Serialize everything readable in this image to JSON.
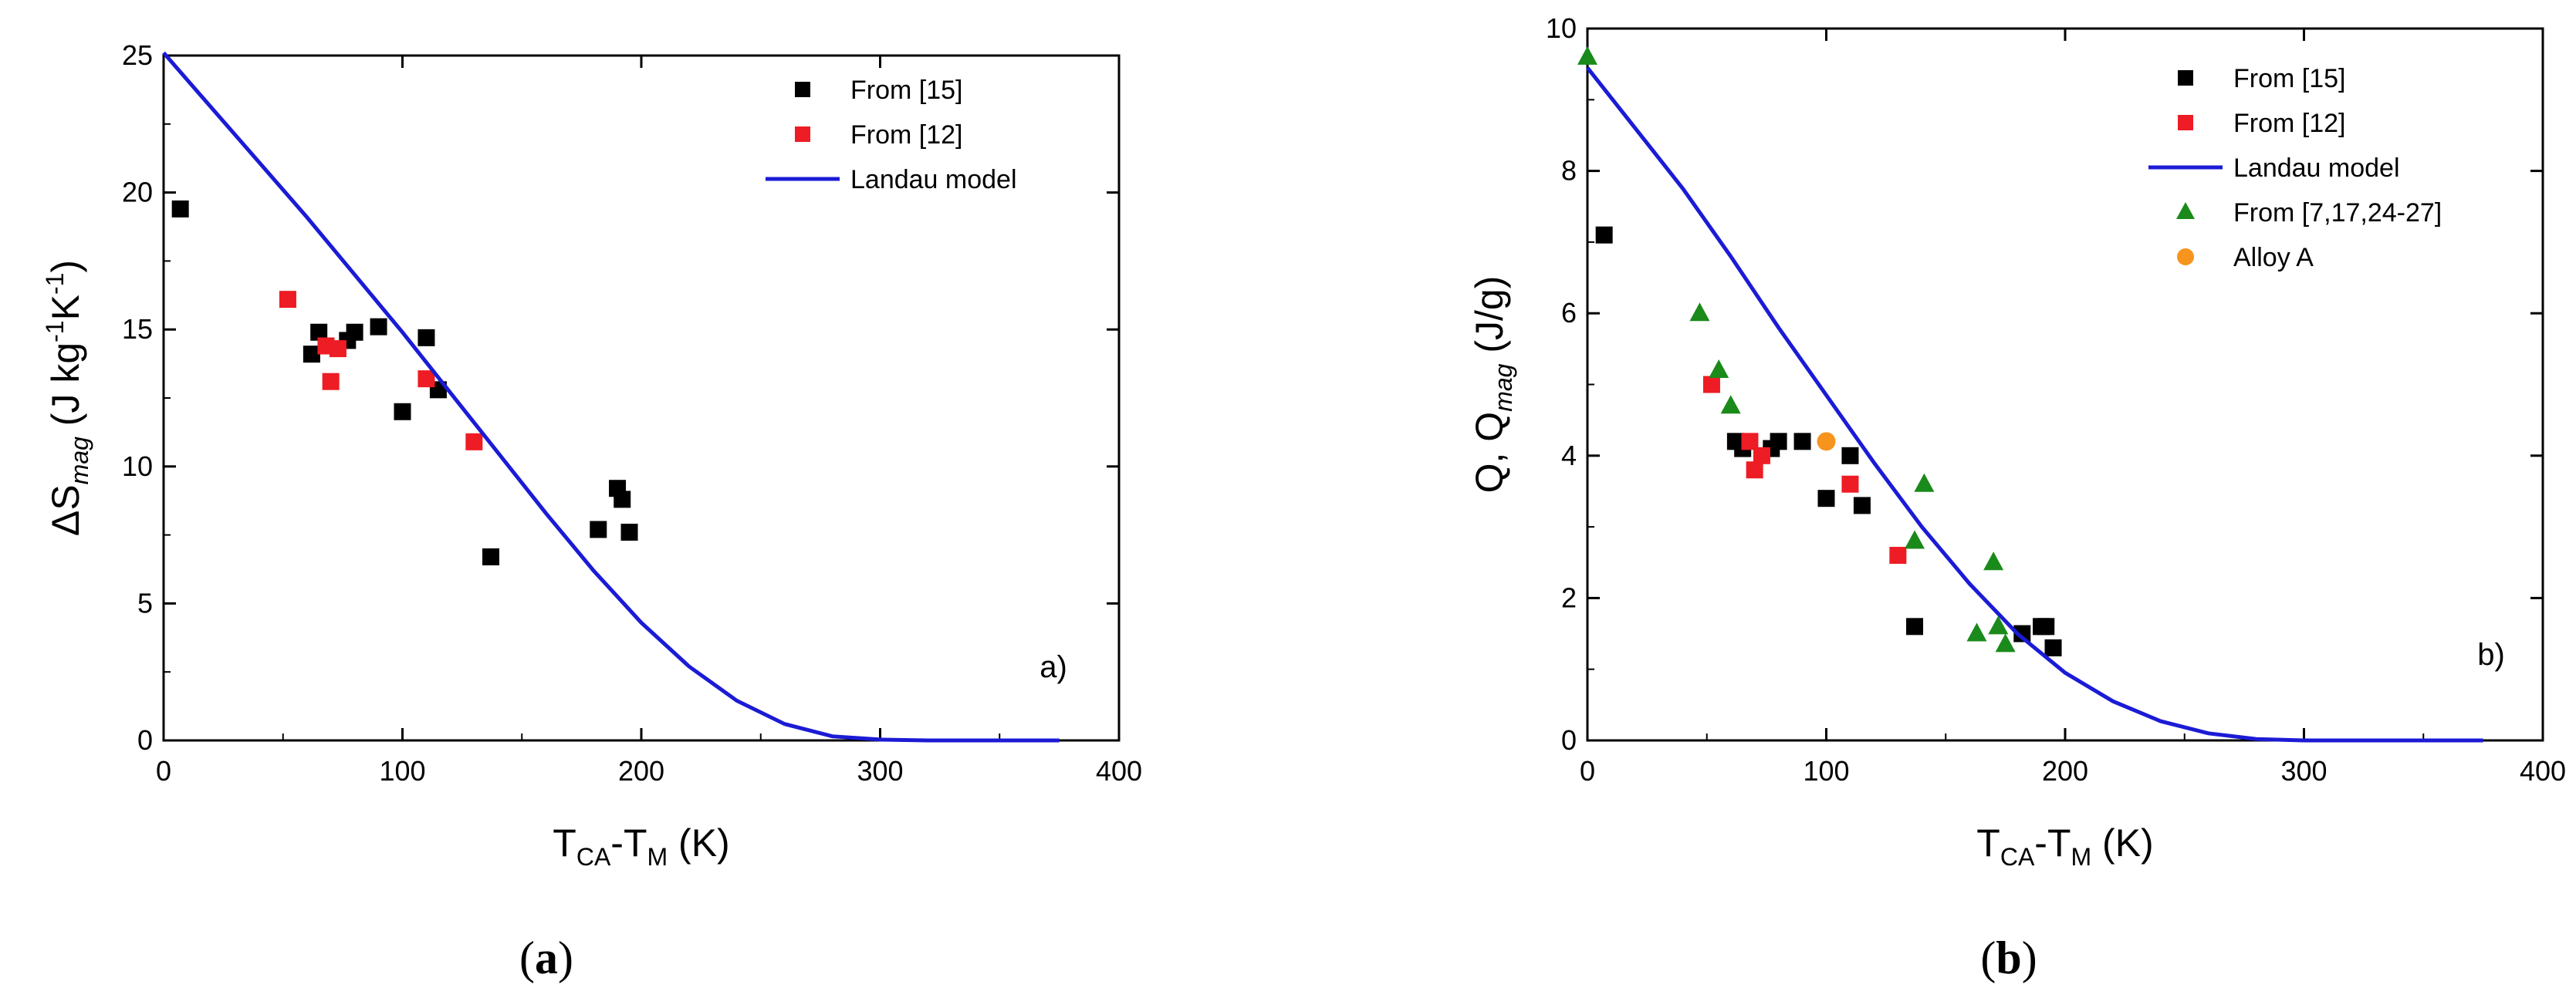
{
  "chart_data": [
    {
      "type": "scatter",
      "id": "a",
      "caption": {
        "open": "(",
        "letter": "a",
        "close": ")"
      },
      "panel_label": "a)",
      "xlabel": {
        "base": "T",
        "sub1": "CA",
        "mid": "-T",
        "sub2": "M",
        "unit": " (K)"
      },
      "ylabel": {
        "pre": "ΔS",
        "sub": "mag",
        "unit": " (J kg",
        "exp1": "-1",
        "mid": "K",
        "exp2": "-1",
        "close": ")"
      },
      "xlim": [
        0,
        400
      ],
      "ylim": [
        0,
        25
      ],
      "xticks": [
        0,
        100,
        200,
        300,
        400
      ],
      "yticks": [
        0,
        5,
        10,
        15,
        20,
        25
      ],
      "legend_position": "top-right",
      "series": [
        {
          "name": "From [15]",
          "marker": "square",
          "color": "#000000",
          "points": [
            [
              7,
              19.4
            ],
            [
              62,
              14.1
            ],
            [
              65,
              14.9
            ],
            [
              77,
              14.6
            ],
            [
              80,
              14.9
            ],
            [
              90,
              15.1
            ],
            [
              100,
              12.0
            ],
            [
              110,
              14.7
            ],
            [
              115,
              12.8
            ],
            [
              137,
              6.7
            ],
            [
              182,
              7.7
            ],
            [
              190,
              9.2
            ],
            [
              192,
              8.8
            ],
            [
              195,
              7.6
            ]
          ]
        },
        {
          "name": "From [12]",
          "marker": "square",
          "color": "#ee1c24",
          "points": [
            [
              52,
              16.1
            ],
            [
              68,
              14.4
            ],
            [
              70,
              13.1
            ],
            [
              73,
              14.3
            ],
            [
              110,
              13.2
            ],
            [
              130,
              10.9
            ]
          ]
        },
        {
          "name": "Landau model",
          "marker": "line",
          "color": "#1b1bd6",
          "points": [
            [
              0,
              25.1
            ],
            [
              20,
              23.1
            ],
            [
              40,
              21.1
            ],
            [
              60,
              19.1
            ],
            [
              80,
              17.0
            ],
            [
              100,
              14.9
            ],
            [
              120,
              12.7
            ],
            [
              140,
              10.5
            ],
            [
              160,
              8.3
            ],
            [
              180,
              6.2
            ],
            [
              200,
              4.3
            ],
            [
              220,
              2.7
            ],
            [
              240,
              1.45
            ],
            [
              260,
              0.6
            ],
            [
              280,
              0.15
            ],
            [
              300,
              0.03
            ],
            [
              320,
              0
            ],
            [
              350,
              0
            ],
            [
              375,
              0
            ]
          ]
        }
      ]
    },
    {
      "type": "scatter",
      "id": "b",
      "caption": {
        "open": "(",
        "letter": "b",
        "close": ")"
      },
      "panel_label": "b)",
      "xlabel": {
        "base": "T",
        "sub1": "CA",
        "mid": "-T",
        "sub2": "M",
        "unit": " (K)"
      },
      "ylabel": {
        "pre": "Q, Q",
        "sub": "mag",
        "unit": " (J/g)"
      },
      "xlim": [
        0,
        400
      ],
      "ylim": [
        0,
        10
      ],
      "xticks": [
        0,
        100,
        200,
        300,
        400
      ],
      "yticks": [
        0,
        2,
        4,
        6,
        8,
        10
      ],
      "legend_position": "top-right",
      "series": [
        {
          "name": "From [15]",
          "marker": "square",
          "color": "#000000",
          "points": [
            [
              7,
              7.1
            ],
            [
              62,
              4.2
            ],
            [
              65,
              4.1
            ],
            [
              77,
              4.1
            ],
            [
              80,
              4.2
            ],
            [
              90,
              4.2
            ],
            [
              100,
              3.4
            ],
            [
              110,
              4.0
            ],
            [
              115,
              3.3
            ],
            [
              137,
              1.6
            ],
            [
              182,
              1.5
            ],
            [
              190,
              1.6
            ],
            [
              192,
              1.6
            ],
            [
              195,
              1.3
            ]
          ]
        },
        {
          "name": "From [12]",
          "marker": "square",
          "color": "#ee1c24",
          "points": [
            [
              52,
              5.0
            ],
            [
              68,
              4.2
            ],
            [
              70,
              3.8
            ],
            [
              73,
              4.0
            ],
            [
              110,
              3.6
            ],
            [
              130,
              2.6
            ]
          ]
        },
        {
          "name": "Landau model",
          "marker": "line",
          "color": "#1b1bd6",
          "points": [
            [
              0,
              9.45
            ],
            [
              20,
              8.6
            ],
            [
              40,
              7.75
            ],
            [
              60,
              6.8
            ],
            [
              80,
              5.8
            ],
            [
              100,
              4.85
            ],
            [
              120,
              3.9
            ],
            [
              140,
              3.0
            ],
            [
              160,
              2.2
            ],
            [
              180,
              1.5
            ],
            [
              200,
              0.95
            ],
            [
              220,
              0.55
            ],
            [
              240,
              0.27
            ],
            [
              260,
              0.1
            ],
            [
              280,
              0.02
            ],
            [
              300,
              0
            ],
            [
              340,
              0
            ],
            [
              375,
              0
            ]
          ]
        },
        {
          "name": "From [7,17,24-27]",
          "marker": "triangle",
          "color": "#1a8a1a",
          "points": [
            [
              0,
              9.6
            ],
            [
              47,
              6.0
            ],
            [
              55,
              5.2
            ],
            [
              60,
              4.7
            ],
            [
              137,
              2.8
            ],
            [
              141,
              3.6
            ],
            [
              163,
              1.5
            ],
            [
              170,
              2.5
            ],
            [
              172,
              1.6
            ],
            [
              175,
              1.35
            ]
          ]
        },
        {
          "name": "Alloy A",
          "marker": "circle",
          "color": "#f7941d",
          "points": [
            [
              100,
              4.2
            ]
          ]
        }
      ]
    }
  ]
}
